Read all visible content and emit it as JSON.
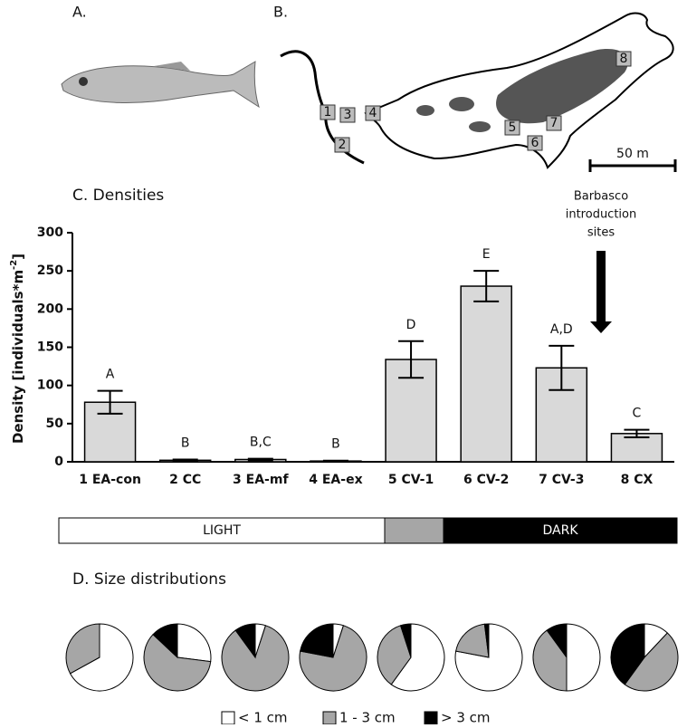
{
  "panels": {
    "a": "A.",
    "b": "B.",
    "c": "C.  Densities",
    "d": "D.  Size distributions"
  },
  "map": {
    "sites": [
      "1",
      "2",
      "3",
      "4",
      "5",
      "6",
      "7",
      "8"
    ],
    "scale": "50 m"
  },
  "light_bar": {
    "light": "LIGHT",
    "dark": "DARK"
  },
  "chart_data": [
    {
      "type": "bar",
      "ylabel": "Density [individuals*m",
      "ylabel_sup": "-2",
      "ylabel_end": "]",
      "categories": [
        "1 EA-con",
        "2 CC",
        "3 EA-mf",
        "4 EA-ex",
        "5 CV-1",
        "6 CV-2",
        "7 CV-3",
        "8 CX"
      ],
      "values": [
        78,
        2,
        3,
        1,
        134,
        230,
        123,
        37
      ],
      "errors": [
        15,
        1,
        1,
        0.5,
        24,
        20,
        29,
        5
      ],
      "letters": [
        "A",
        "B",
        "B,C",
        "B",
        "D",
        "E",
        "A,D",
        "C"
      ],
      "color": "#d9d9d9",
      "ylim": [
        0,
        300
      ],
      "yticks": [
        0,
        50,
        100,
        150,
        200,
        250,
        300
      ],
      "annotation": [
        "Barbasco",
        "introduction",
        "sites"
      ]
    },
    {
      "type": "pie",
      "categories": [
        "< 1 cm",
        "1 - 3 cm",
        "> 3 cm"
      ],
      "colors": [
        "#ffffff",
        "#a6a6a6",
        "#000000"
      ],
      "series": [
        {
          "values": [
            67,
            33,
            0
          ]
        },
        {
          "values": [
            27,
            60,
            13
          ]
        },
        {
          "values": [
            5,
            85,
            10
          ]
        },
        {
          "values": [
            5,
            73,
            22
          ]
        },
        {
          "values": [
            60,
            35,
            5
          ]
        },
        {
          "values": [
            78,
            20,
            2
          ]
        },
        {
          "values": [
            50,
            40,
            10
          ]
        },
        {
          "values": [
            12,
            48,
            40
          ]
        }
      ]
    }
  ]
}
